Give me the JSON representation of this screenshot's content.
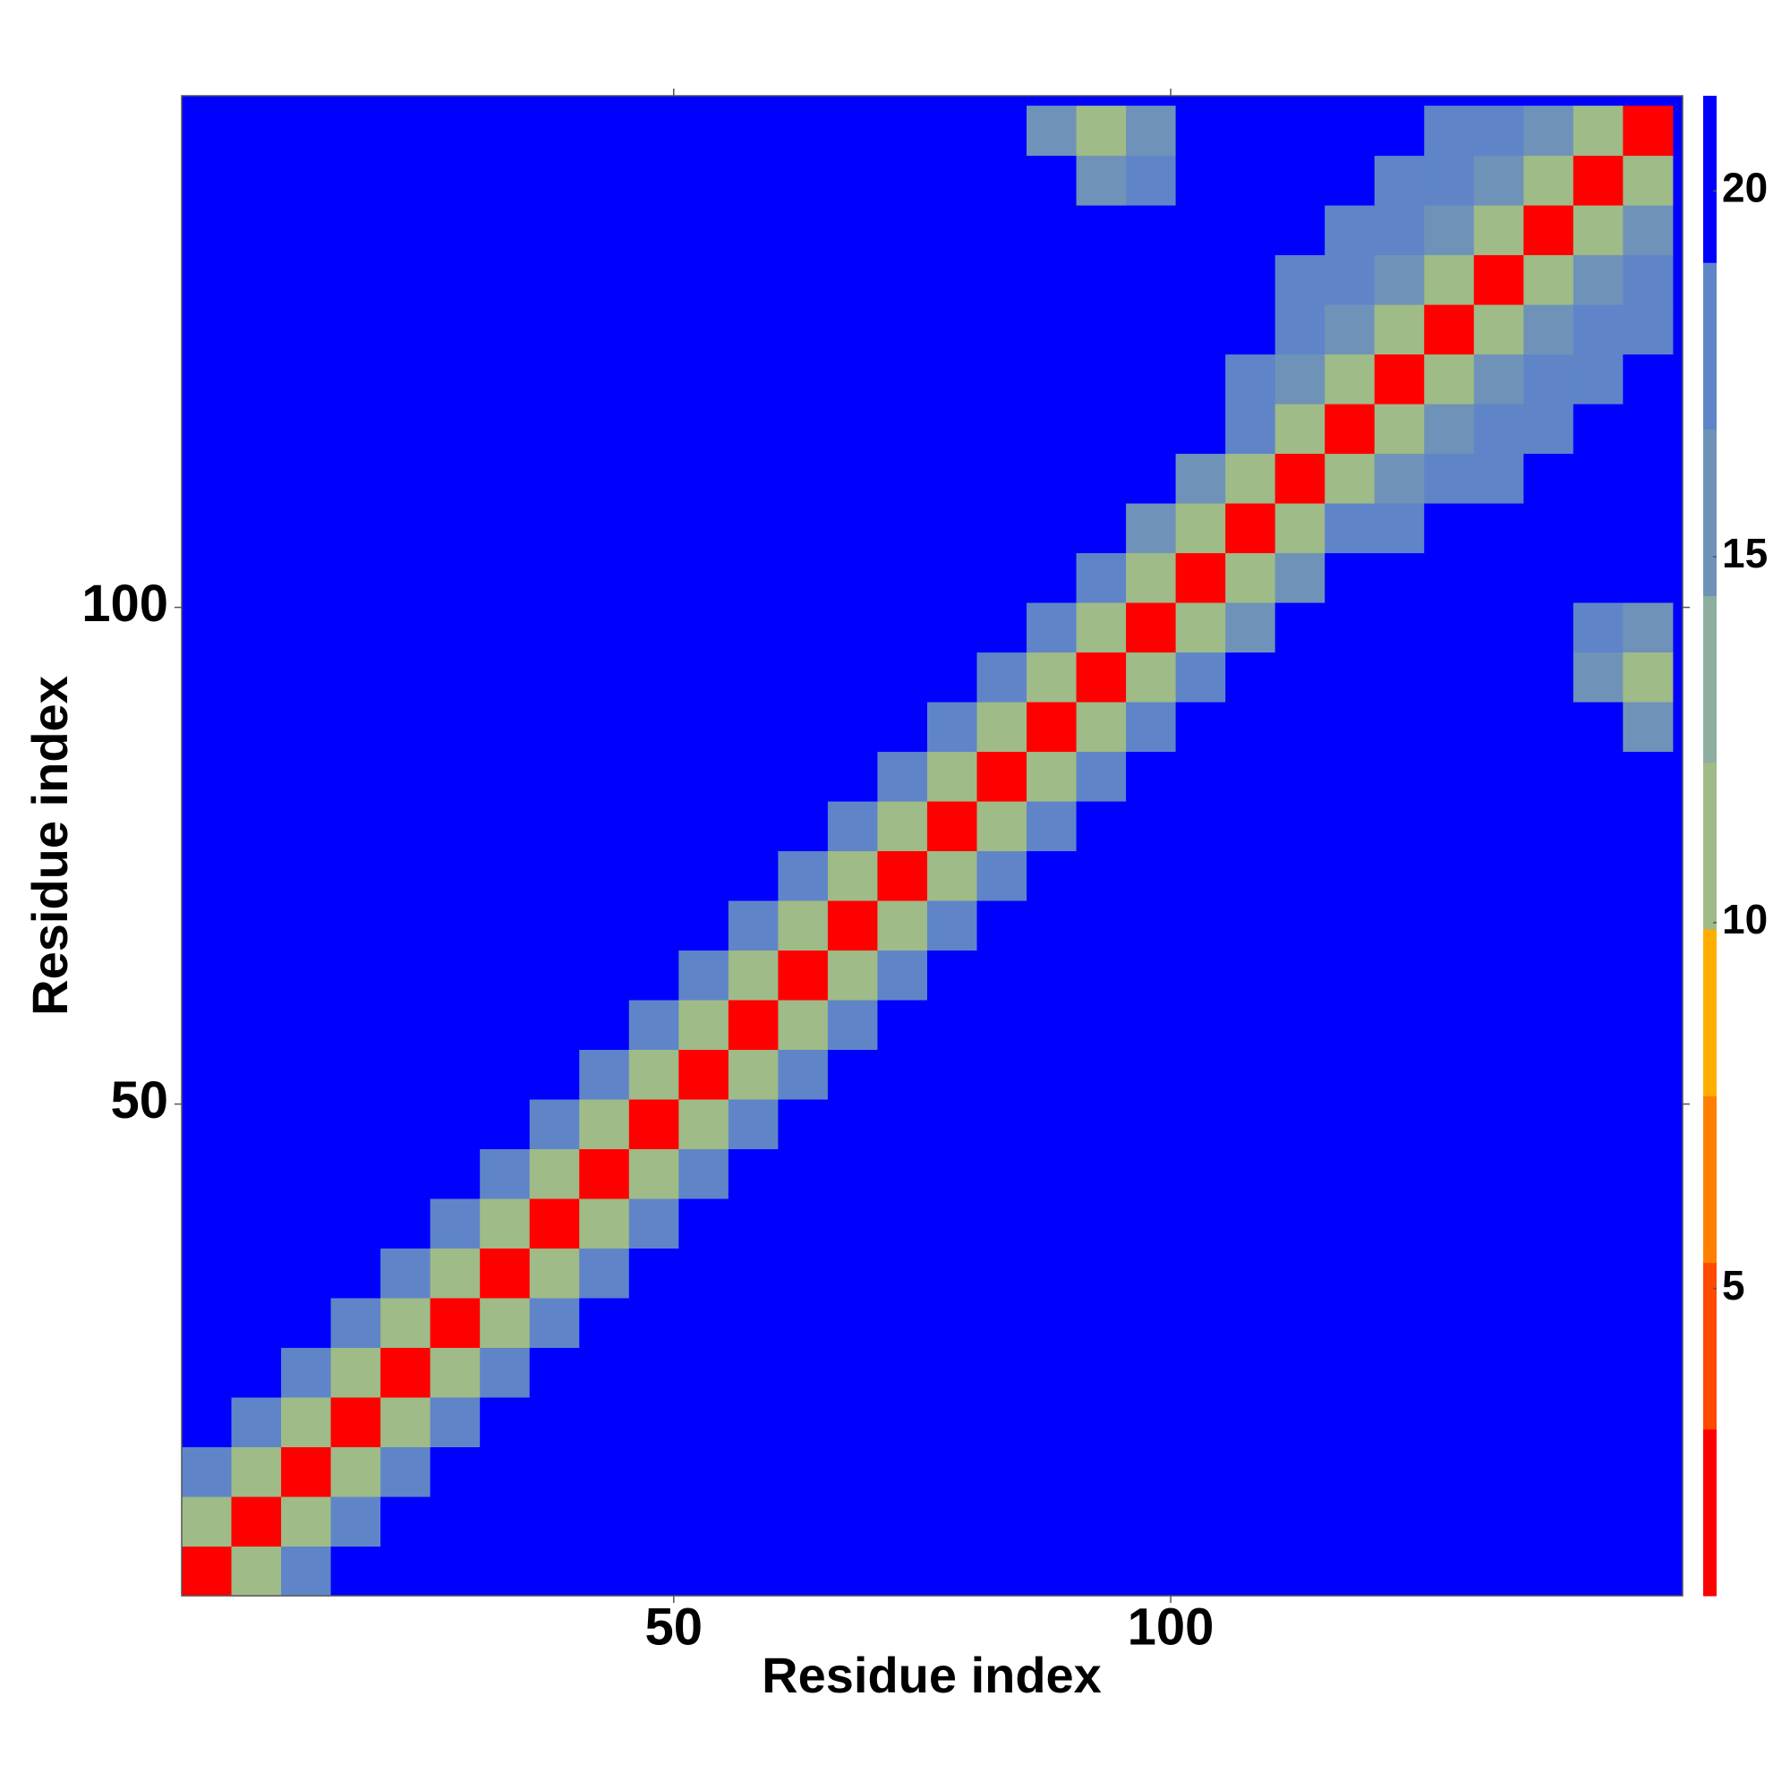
{
  "chart_data": {
    "type": "heatmap",
    "x_label": "Residue index",
    "y_label": "Residue index",
    "x": [
      3,
      8,
      13,
      18,
      23,
      28,
      33,
      38,
      43,
      48,
      53,
      58,
      63,
      68,
      73,
      78,
      83,
      88,
      93,
      98,
      103,
      108,
      113,
      118,
      123,
      128,
      133,
      138,
      143,
      148
    ],
    "y": [
      3,
      8,
      13,
      18,
      23,
      28,
      33,
      38,
      43,
      48,
      53,
      58,
      63,
      68,
      73,
      78,
      83,
      88,
      93,
      98,
      103,
      108,
      113,
      118,
      123,
      128,
      133,
      138,
      143,
      148
    ],
    "z": [
      [
        3,
        12,
        18,
        21,
        21,
        21,
        21,
        21,
        21,
        21,
        21,
        21,
        21,
        21,
        21,
        21,
        21,
        21,
        21,
        21,
        21,
        21,
        21,
        21,
        21,
        21,
        21,
        21,
        21,
        21
      ],
      [
        12,
        3,
        12,
        18,
        21,
        21,
        21,
        21,
        21,
        21,
        21,
        21,
        21,
        21,
        21,
        21,
        21,
        21,
        21,
        21,
        21,
        21,
        21,
        21,
        21,
        21,
        21,
        21,
        21,
        21
      ],
      [
        18,
        12,
        3,
        12,
        18,
        21,
        21,
        21,
        21,
        21,
        21,
        21,
        21,
        21,
        21,
        21,
        21,
        21,
        21,
        21,
        21,
        21,
        21,
        21,
        21,
        21,
        21,
        21,
        21,
        21
      ],
      [
        21,
        18,
        12,
        3,
        12,
        18,
        21,
        21,
        21,
        21,
        21,
        21,
        21,
        21,
        21,
        21,
        21,
        21,
        21,
        21,
        21,
        21,
        21,
        21,
        21,
        21,
        21,
        21,
        21,
        21
      ],
      [
        21,
        21,
        18,
        12,
        3,
        12,
        18,
        21,
        21,
        21,
        21,
        21,
        21,
        21,
        21,
        21,
        21,
        21,
        21,
        21,
        21,
        21,
        21,
        21,
        21,
        21,
        21,
        21,
        21,
        21
      ],
      [
        21,
        21,
        21,
        18,
        12,
        3,
        12,
        18,
        21,
        21,
        21,
        21,
        21,
        21,
        21,
        21,
        21,
        21,
        21,
        21,
        21,
        21,
        21,
        21,
        21,
        21,
        21,
        21,
        21,
        21
      ],
      [
        21,
        21,
        21,
        21,
        18,
        12,
        3,
        12,
        18,
        21,
        21,
        21,
        21,
        21,
        21,
        21,
        21,
        21,
        21,
        21,
        21,
        21,
        21,
        21,
        21,
        21,
        21,
        21,
        21,
        21
      ],
      [
        21,
        21,
        21,
        21,
        21,
        18,
        12,
        3,
        12,
        18,
        21,
        21,
        21,
        21,
        21,
        21,
        21,
        21,
        21,
        21,
        21,
        21,
        21,
        21,
        21,
        21,
        21,
        21,
        21,
        21
      ],
      [
        21,
        21,
        21,
        21,
        21,
        21,
        18,
        12,
        3,
        12,
        18,
        21,
        21,
        21,
        21,
        21,
        21,
        21,
        21,
        21,
        21,
        21,
        21,
        21,
        21,
        21,
        21,
        21,
        21,
        21
      ],
      [
        21,
        21,
        21,
        21,
        21,
        21,
        21,
        18,
        12,
        3,
        12,
        18,
        21,
        21,
        21,
        21,
        21,
        21,
        21,
        21,
        21,
        21,
        21,
        21,
        21,
        21,
        21,
        21,
        21,
        21
      ],
      [
        21,
        21,
        21,
        21,
        21,
        21,
        21,
        21,
        18,
        12,
        3,
        12,
        18,
        21,
        21,
        21,
        21,
        21,
        21,
        21,
        21,
        21,
        21,
        21,
        21,
        21,
        21,
        21,
        21,
        21
      ],
      [
        21,
        21,
        21,
        21,
        21,
        21,
        21,
        21,
        21,
        18,
        12,
        3,
        12,
        18,
        21,
        21,
        21,
        21,
        21,
        21,
        21,
        21,
        21,
        21,
        21,
        21,
        21,
        21,
        21,
        21
      ],
      [
        21,
        21,
        21,
        21,
        21,
        21,
        21,
        21,
        21,
        21,
        18,
        12,
        3,
        12,
        18,
        21,
        21,
        21,
        21,
        21,
        21,
        21,
        21,
        21,
        21,
        21,
        21,
        21,
        21,
        21
      ],
      [
        21,
        21,
        21,
        21,
        21,
        21,
        21,
        21,
        21,
        21,
        21,
        18,
        12,
        3,
        12,
        18,
        21,
        21,
        21,
        21,
        21,
        21,
        21,
        21,
        21,
        21,
        21,
        21,
        21,
        21
      ],
      [
        21,
        21,
        21,
        21,
        21,
        21,
        21,
        21,
        21,
        21,
        21,
        21,
        18,
        12,
        3,
        12,
        18,
        21,
        21,
        21,
        21,
        21,
        21,
        21,
        21,
        21,
        21,
        21,
        21,
        21
      ],
      [
        21,
        21,
        21,
        21,
        21,
        21,
        21,
        21,
        21,
        21,
        21,
        21,
        21,
        18,
        12,
        3,
        12,
        18,
        21,
        21,
        21,
        21,
        21,
        21,
        21,
        21,
        21,
        21,
        21,
        21
      ],
      [
        21,
        21,
        21,
        21,
        21,
        21,
        21,
        21,
        21,
        21,
        21,
        21,
        21,
        21,
        18,
        12,
        3,
        12,
        18,
        21,
        21,
        21,
        21,
        21,
        21,
        21,
        21,
        21,
        21,
        21
      ],
      [
        21,
        21,
        21,
        21,
        21,
        21,
        21,
        21,
        21,
        21,
        21,
        21,
        21,
        21,
        21,
        18,
        12,
        3,
        12,
        18,
        21,
        21,
        21,
        21,
        21,
        21,
        21,
        21,
        21,
        16
      ],
      [
        21,
        21,
        21,
        21,
        21,
        21,
        21,
        21,
        21,
        21,
        21,
        21,
        21,
        21,
        21,
        21,
        18,
        12,
        3,
        12,
        18,
        21,
        21,
        21,
        21,
        21,
        21,
        21,
        15,
        12
      ],
      [
        21,
        21,
        21,
        21,
        21,
        21,
        21,
        21,
        21,
        21,
        21,
        21,
        21,
        21,
        21,
        21,
        21,
        18,
        12,
        3,
        12,
        16,
        21,
        21,
        21,
        21,
        21,
        21,
        17,
        16
      ],
      [
        21,
        21,
        21,
        21,
        21,
        21,
        21,
        21,
        21,
        21,
        21,
        21,
        21,
        21,
        21,
        21,
        21,
        21,
        18,
        12,
        3,
        12,
        16,
        21,
        21,
        21,
        21,
        21,
        21,
        21
      ],
      [
        21,
        21,
        21,
        21,
        21,
        21,
        21,
        21,
        21,
        21,
        21,
        21,
        21,
        21,
        21,
        21,
        21,
        21,
        21,
        16,
        12,
        3,
        12,
        18,
        17,
        21,
        21,
        21,
        21,
        21
      ],
      [
        21,
        21,
        21,
        21,
        21,
        21,
        21,
        21,
        21,
        21,
        21,
        21,
        21,
        21,
        21,
        21,
        21,
        21,
        21,
        21,
        16,
        12,
        3,
        12,
        15,
        17,
        19,
        21,
        21,
        21
      ],
      [
        21,
        21,
        21,
        21,
        21,
        21,
        21,
        21,
        21,
        21,
        21,
        21,
        21,
        21,
        21,
        21,
        21,
        21,
        21,
        21,
        21,
        18,
        12,
        3,
        12,
        15,
        17,
        19,
        21,
        21
      ],
      [
        21,
        21,
        21,
        21,
        21,
        21,
        21,
        21,
        21,
        21,
        21,
        21,
        21,
        21,
        21,
        21,
        21,
        21,
        21,
        21,
        21,
        17,
        15,
        12,
        3,
        12,
        15,
        17,
        19,
        21
      ],
      [
        21,
        21,
        21,
        21,
        21,
        21,
        21,
        21,
        21,
        21,
        21,
        21,
        21,
        21,
        21,
        21,
        21,
        21,
        21,
        21,
        21,
        21,
        17,
        15,
        12,
        3,
        12,
        15,
        17,
        19
      ],
      [
        21,
        21,
        21,
        21,
        21,
        21,
        21,
        21,
        21,
        21,
        21,
        21,
        21,
        21,
        21,
        21,
        21,
        21,
        21,
        21,
        21,
        21,
        19,
        17,
        15,
        12,
        3,
        12,
        15,
        17
      ],
      [
        21,
        21,
        21,
        21,
        21,
        21,
        21,
        21,
        21,
        21,
        21,
        21,
        21,
        21,
        21,
        21,
        21,
        21,
        21,
        21,
        21,
        21,
        21,
        19,
        17,
        15,
        12,
        3,
        12,
        15
      ],
      [
        21,
        21,
        21,
        21,
        21,
        21,
        21,
        21,
        21,
        21,
        21,
        21,
        21,
        21,
        21,
        21,
        21,
        21,
        15,
        17,
        21,
        21,
        21,
        21,
        19,
        17,
        15,
        12,
        3,
        12
      ],
      [
        21,
        21,
        21,
        21,
        21,
        21,
        21,
        21,
        21,
        21,
        21,
        21,
        21,
        21,
        21,
        21,
        21,
        16,
        12,
        16,
        21,
        21,
        21,
        21,
        21,
        19,
        17,
        15,
        12,
        3
      ]
    ],
    "xlim": [
      0.5,
      151.5
    ],
    "ylim": [
      0.5,
      151.5
    ],
    "xticks": [
      50,
      100
    ],
    "yticks": [
      50,
      100
    ],
    "zlim": [
      0.8,
      21.3
    ],
    "cticks": [
      5,
      10,
      15,
      20
    ],
    "colorscale": [
      "#ff0000",
      "#ff4a00",
      "#ff8000",
      "#ffae00",
      "#9fbb87",
      "#8eaea0",
      "#6f93b8",
      "#5f85c8",
      "#0000ff"
    ],
    "grid": false
  }
}
